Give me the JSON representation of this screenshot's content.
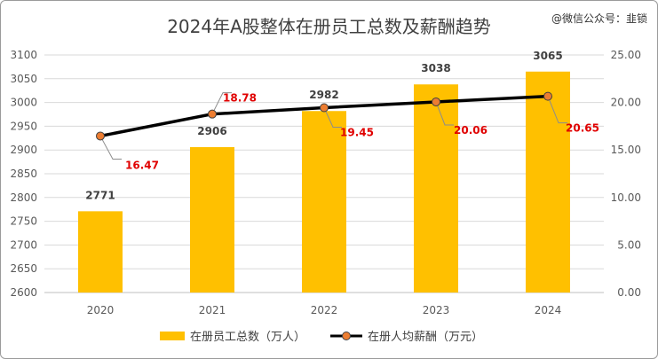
{
  "watermark": "@微信公众号：韭锁",
  "chart_data": {
    "type": "bar",
    "title": "2024年A股整体在册员工总数及薪酬趋势",
    "categories": [
      "2020",
      "2021",
      "2022",
      "2023",
      "2024"
    ],
    "series": [
      {
        "name": "在册员工总数（万人）",
        "type": "bar",
        "axis": "left",
        "color": "#FFC000",
        "values": [
          2771,
          2906,
          2982,
          3038,
          3065
        ],
        "labels": [
          "2771",
          "2906",
          "2982",
          "3038",
          "3065"
        ]
      },
      {
        "name": "在册人均薪酬（万元）",
        "type": "line",
        "axis": "right",
        "color": "#000000",
        "marker_color": "#ED7D31",
        "values": [
          16.47,
          18.78,
          19.45,
          20.06,
          20.65
        ],
        "labels": [
          "16.47",
          "18.78",
          "19.45",
          "20.06",
          "20.65"
        ],
        "label_color": "#E00000"
      }
    ],
    "y_left": {
      "min": 2600,
      "max": 3100,
      "step": 50,
      "ticks": [
        "2600",
        "2650",
        "2700",
        "2750",
        "2800",
        "2850",
        "2900",
        "2950",
        "3000",
        "3050",
        "3100"
      ]
    },
    "y_right": {
      "min": 0,
      "max": 25,
      "step": 5,
      "ticks": [
        "0.00",
        "5.00",
        "10.00",
        "15.00",
        "20.00",
        "25.00"
      ]
    },
    "grid": true,
    "legend": "bottom"
  }
}
